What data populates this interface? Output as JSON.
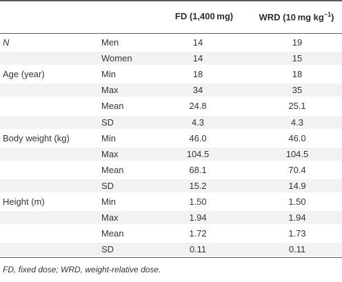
{
  "header": {
    "col_fd": "FD (1,400 mg)",
    "col_wrd_prefix": "WRD (10 mg kg",
    "col_wrd_sup": "−1",
    "col_wrd_suffix": ")"
  },
  "rows": [
    {
      "group": "N",
      "label": "Men",
      "fd": "14",
      "wrd": "19"
    },
    {
      "group": "",
      "label": "Women",
      "fd": "14",
      "wrd": "15"
    },
    {
      "group": "Age (year)",
      "label": "Min",
      "fd": "18",
      "wrd": "18"
    },
    {
      "group": "",
      "label": "Max",
      "fd": "34",
      "wrd": "35"
    },
    {
      "group": "",
      "label": "Mean",
      "fd": "24.8",
      "wrd": "25.1"
    },
    {
      "group": "",
      "label": "SD",
      "fd": "4.3",
      "wrd": "4.3"
    },
    {
      "group": "Body weight (kg)",
      "label": "Min",
      "fd": "46.0",
      "wrd": "46.0"
    },
    {
      "group": "",
      "label": "Max",
      "fd": "104.5",
      "wrd": "104.5"
    },
    {
      "group": "",
      "label": "Mean",
      "fd": "68.1",
      "wrd": "70.4"
    },
    {
      "group": "",
      "label": "SD",
      "fd": "15.2",
      "wrd": "14.9"
    },
    {
      "group": "Height (m)",
      "label": "Min",
      "fd": "1.50",
      "wrd": "1.50"
    },
    {
      "group": "",
      "label": "Max",
      "fd": "1.94",
      "wrd": "1.94"
    },
    {
      "group": "",
      "label": "Mean",
      "fd": "1.72",
      "wrd": "1.73"
    },
    {
      "group": "",
      "label": "SD",
      "fd": "0.11",
      "wrd": "0.11"
    }
  ],
  "footnote": "FD, fixed dose; WRD, weight-relative dose.",
  "colors": {
    "rule": "#5a5a5a",
    "zebra": "#f2f2f2",
    "text": "#333333"
  }
}
